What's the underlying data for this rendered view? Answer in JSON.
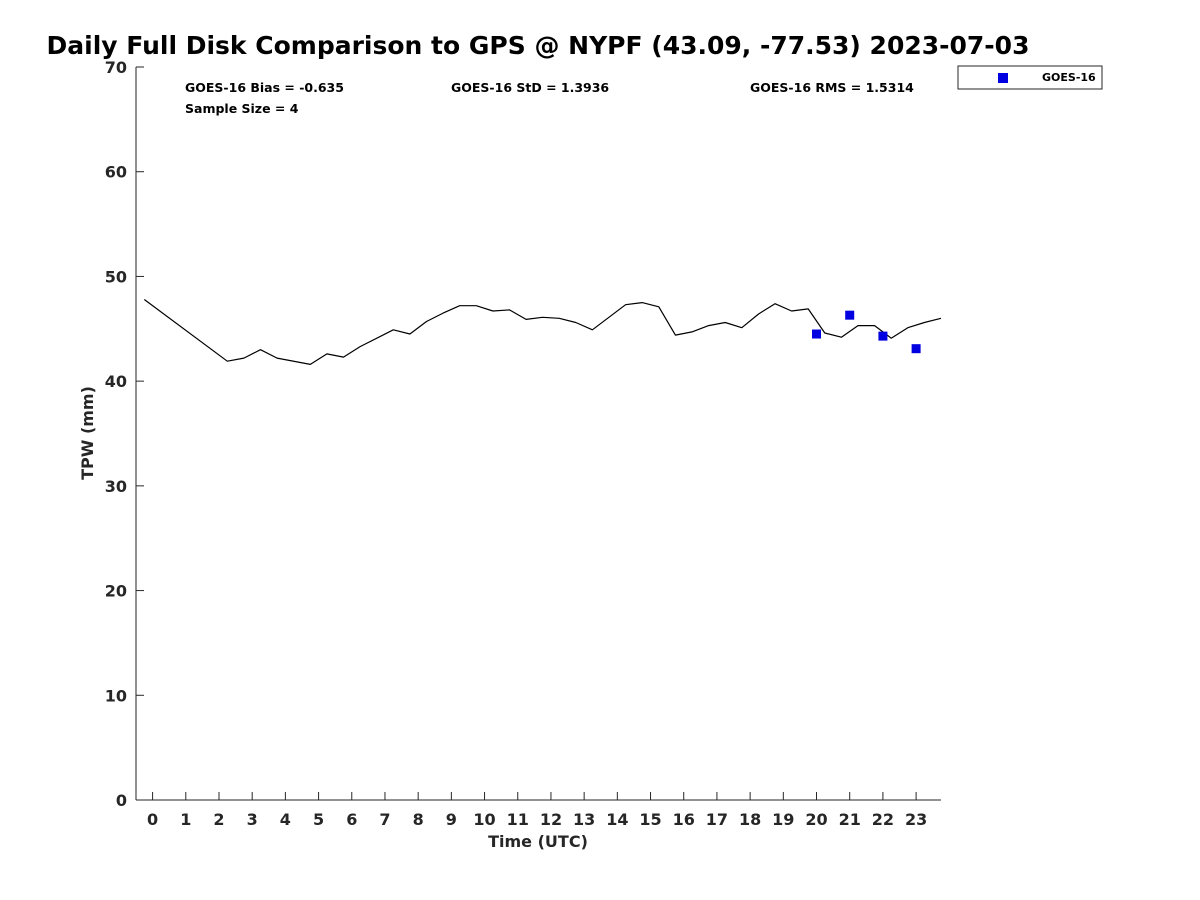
{
  "chart_data": {
    "type": "line",
    "title": "Daily Full Disk Comparison to GPS @ NYPF (43.09, -77.53) 2023-07-03",
    "xlabel": "Time (UTC)",
    "ylabel": "TPW (mm)",
    "xlim": [
      -0.5,
      23.75
    ],
    "ylim": [
      0,
      70
    ],
    "x_ticks": [
      0,
      1,
      2,
      3,
      4,
      5,
      6,
      7,
      8,
      9,
      10,
      11,
      12,
      13,
      14,
      15,
      16,
      17,
      18,
      19,
      20,
      21,
      22,
      23
    ],
    "y_ticks": [
      0,
      10,
      20,
      30,
      40,
      50,
      60,
      70
    ],
    "grid": false,
    "legend_position": "outside-top-right",
    "series": [
      {
        "kind": "line",
        "color": "#000000",
        "x": [
          -0.25,
          2.25,
          2.75,
          3.25,
          3.75,
          4.75,
          5.25,
          5.75,
          6.25,
          7.25,
          7.75,
          8.25,
          8.75,
          9.25,
          9.75,
          10.25,
          10.75,
          11.25,
          11.75,
          12.25,
          12.75,
          13.25,
          14.25,
          14.75,
          15.25,
          15.75,
          16.25,
          16.75,
          17.25,
          17.75,
          18.25,
          18.75,
          19.25,
          19.75,
          20.25,
          20.75,
          21.25,
          21.75,
          22.25,
          22.75,
          23.25,
          23.75
        ],
        "y": [
          47.8,
          41.9,
          42.2,
          43.0,
          42.2,
          41.6,
          42.6,
          42.3,
          43.3,
          44.9,
          44.5,
          45.7,
          46.5,
          47.2,
          47.2,
          46.7,
          46.8,
          45.9,
          46.1,
          46.0,
          45.6,
          44.9,
          47.3,
          47.5,
          47.1,
          44.4,
          44.7,
          45.3,
          45.6,
          45.1,
          46.4,
          47.4,
          46.7,
          46.9,
          44.6,
          44.2,
          45.3,
          45.3,
          44.1,
          45.1,
          45.6,
          46.0
        ]
      },
      {
        "kind": "scatter",
        "name": "GOES-16",
        "color": "#0000e0",
        "x": [
          20,
          21,
          22,
          23
        ],
        "y": [
          44.5,
          46.3,
          44.3,
          43.1
        ]
      }
    ]
  },
  "stats": {
    "bias": "GOES-16 Bias = -0.635",
    "std": "GOES-16 StD = 1.3936",
    "rms": "GOES-16 RMS = 1.5314",
    "sample_size": "Sample Size = 4"
  },
  "legend": {
    "label": "GOES-16"
  }
}
